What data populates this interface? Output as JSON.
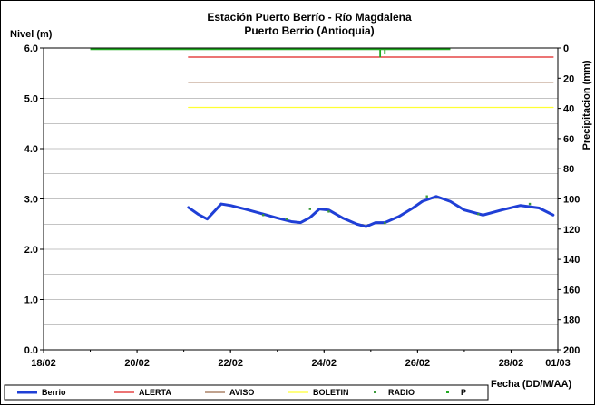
{
  "chart_data": {
    "type": "line",
    "title": "Estación Puerto Berrío - Río Magdalena",
    "subtitle": "Puerto Berrio (Antioquia)",
    "ylabel": "Nivel (m)",
    "y2label": "Precipitacion (mm)",
    "xlabel": "Fecha (DD/M/AA)",
    "ylim": [
      0,
      6
    ],
    "y2lim": [
      0,
      200
    ],
    "y2_reversed": true,
    "xlim": [
      "18/02",
      "01/03"
    ],
    "x_tick_labels": [
      "18/02",
      "20/02",
      "22/02",
      "24/02",
      "26/02",
      "28/02",
      "01/03"
    ],
    "y_tick_labels": [
      "0.0",
      "1.0",
      "2.0",
      "3.0",
      "4.0",
      "5.0",
      "6.0"
    ],
    "y2_tick_labels": [
      "0",
      "20",
      "40",
      "60",
      "80",
      "100",
      "120",
      "140",
      "160",
      "180",
      "200"
    ],
    "grid": true,
    "legend_placement": "bottom",
    "series": [
      {
        "name": "Berrio",
        "color": "#1f3fd6",
        "kind": "line",
        "x": [
          21.1,
          21.3,
          21.5,
          21.8,
          22.0,
          22.3,
          22.7,
          23.0,
          23.3,
          23.5,
          23.7,
          23.9,
          24.1,
          24.4,
          24.7,
          24.9,
          25.1,
          25.3,
          25.6,
          25.9,
          26.1,
          26.4,
          26.7,
          27.0,
          27.4,
          27.8,
          28.2,
          28.6,
          28.9
        ],
        "values": [
          2.83,
          2.7,
          2.6,
          2.9,
          2.87,
          2.8,
          2.7,
          2.62,
          2.55,
          2.53,
          2.63,
          2.8,
          2.78,
          2.62,
          2.5,
          2.45,
          2.53,
          2.53,
          2.65,
          2.82,
          2.95,
          3.05,
          2.95,
          2.78,
          2.68,
          2.78,
          2.87,
          2.82,
          2.68
        ]
      },
      {
        "name": "ALERTA",
        "color": "#e02020",
        "kind": "hline",
        "x": [
          21.1,
          28.9
        ],
        "values": [
          5.82,
          5.82
        ]
      },
      {
        "name": "AVISO",
        "color": "#9a6a4a",
        "kind": "hline",
        "x": [
          21.1,
          28.9
        ],
        "values": [
          5.32,
          5.32
        ]
      },
      {
        "name": "BOLETIN",
        "color": "#ffff33",
        "kind": "hline",
        "x": [
          21.1,
          28.9
        ],
        "values": [
          4.82,
          4.82
        ]
      },
      {
        "name": "RADIO",
        "color": "#3a9a3a",
        "kind": "points",
        "x": [
          22.7,
          23.2,
          23.7,
          24.1,
          25.3,
          26.2,
          27.3,
          28.4
        ],
        "values": [
          2.68,
          2.6,
          2.8,
          2.75,
          2.52,
          3.05,
          2.7,
          2.9
        ]
      },
      {
        "name": "P",
        "color": "#22aa22",
        "kind": "precip",
        "axis": "y2",
        "x": [
          19.0,
          26.7
        ],
        "values": [
          0,
          0
        ],
        "spike_x": [
          25.2,
          25.3
        ],
        "spike_values": [
          5,
          3
        ]
      }
    ],
    "colors": {
      "axis": "#000000",
      "grid": "#888888",
      "frame": "#000000"
    }
  }
}
